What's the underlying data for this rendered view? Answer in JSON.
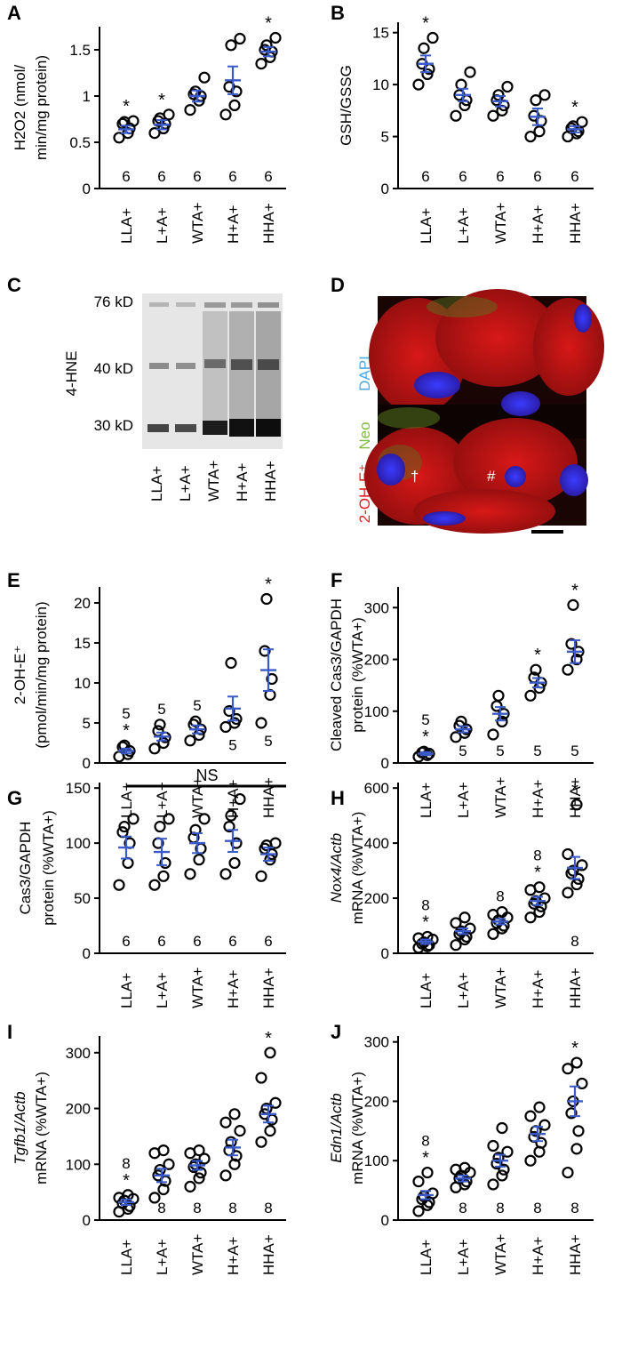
{
  "categories": [
    "LLA+",
    "L+A+",
    "WTA+",
    "H+A+",
    "HHA+"
  ],
  "colors": {
    "points": "#000000",
    "mean_sem": "#3a5bc7",
    "axis": "#000000",
    "dapi": "#4aa8e8",
    "neo": "#7db83a",
    "oh": "#e02020"
  },
  "chart_data": [
    {
      "id": "A",
      "type": "scatter",
      "ylabel": [
        "H2O2 (nmol/",
        "min/mg protein)"
      ],
      "ylim": [
        0,
        1.75
      ],
      "yticks": [
        0,
        0.5,
        1,
        1.5
      ],
      "ytick_labels": [
        "0",
        "0.5",
        "1",
        "1.5"
      ],
      "points": [
        [
          0.55,
          0.6,
          0.65,
          0.7,
          0.72,
          0.73
        ],
        [
          0.6,
          0.65,
          0.7,
          0.73,
          0.76,
          0.8
        ],
        [
          0.85,
          0.95,
          1.0,
          1.02,
          1.05,
          1.2
        ],
        [
          0.8,
          0.9,
          1.05,
          1.1,
          1.55,
          1.62
        ],
        [
          1.35,
          1.42,
          1.48,
          1.5,
          1.55,
          1.63
        ]
      ],
      "mean": [
        0.64,
        0.69,
        1.0,
        1.17,
        1.48
      ],
      "sem": [
        0.04,
        0.05,
        0.06,
        0.15,
        0.05
      ],
      "n": [
        "6",
        "6",
        "6",
        "6",
        "6"
      ],
      "n_pos": "bottom",
      "stars": [
        true,
        true,
        false,
        false,
        true
      ]
    },
    {
      "id": "B",
      "type": "scatter",
      "ylabel": [
        "GSH/GSSG"
      ],
      "ylim": [
        0,
        16
      ],
      "yticks": [
        0,
        5,
        10,
        15
      ],
      "ytick_labels": [
        "0",
        "5",
        "10",
        "15"
      ],
      "points": [
        [
          10.0,
          11.0,
          11.5,
          12.0,
          13.5,
          14.5
        ],
        [
          7.0,
          8.0,
          8.5,
          9.0,
          10.0,
          11.2
        ],
        [
          7.0,
          7.5,
          8.0,
          8.5,
          9.0,
          9.8
        ],
        [
          5.0,
          5.5,
          6.5,
          7.0,
          8.5,
          9.0
        ],
        [
          5.0,
          5.3,
          5.5,
          5.8,
          6.0,
          6.4
        ]
      ],
      "mean": [
        12.0,
        9.0,
        8.4,
        6.9,
        5.7
      ],
      "sem": [
        0.8,
        0.6,
        0.5,
        0.8,
        0.3
      ],
      "n": [
        "6",
        "6",
        "6",
        "6",
        "6"
      ],
      "n_pos": "bottom",
      "stars": [
        true,
        false,
        false,
        false,
        true
      ]
    },
    {
      "id": "E",
      "type": "scatter",
      "ylabel": [
        "2-OH-E⁺",
        "(pmol/min/mg protein)"
      ],
      "ylim": [
        0,
        22
      ],
      "yticks": [
        0,
        5,
        10,
        15,
        20
      ],
      "ytick_labels": [
        "0",
        "5",
        "10",
        "15",
        "20"
      ],
      "points": [
        [
          0.8,
          1.1,
          1.5,
          2.0,
          2.2
        ],
        [
          1.8,
          2.5,
          3.2,
          4.0,
          4.8
        ],
        [
          2.8,
          3.5,
          4.2,
          4.8,
          5.2
        ],
        [
          4.5,
          5.0,
          5.5,
          6.5,
          12.5
        ],
        [
          5.0,
          8.5,
          10.5,
          14.0,
          20.5
        ]
      ],
      "mean": [
        1.5,
        3.3,
        4.2,
        6.8,
        11.6
      ],
      "sem": [
        0.3,
        0.5,
        0.5,
        1.5,
        2.6
      ],
      "n": [
        "5",
        "5",
        "5",
        "5",
        "5"
      ],
      "n_pos": [
        "above",
        "above",
        "above",
        "below",
        "below"
      ],
      "stars": [
        true,
        false,
        false,
        false,
        true
      ]
    },
    {
      "id": "F",
      "type": "scatter",
      "ylabel": [
        "Cleaved Cas3/GAPDH",
        "protein    (%WTA+)"
      ],
      "ylim": [
        0,
        340
      ],
      "yticks": [
        0,
        100,
        200,
        300
      ],
      "ytick_labels": [
        "0",
        "100",
        "200",
        "300"
      ],
      "points": [
        [
          12,
          15,
          18,
          20,
          22
        ],
        [
          50,
          58,
          65,
          72,
          80
        ],
        [
          55,
          80,
          95,
          110,
          130
        ],
        [
          130,
          145,
          155,
          165,
          180
        ],
        [
          180,
          200,
          215,
          230,
          305
        ]
      ],
      "mean": [
        18,
        65,
        95,
        155,
        215
      ],
      "sem": [
        3,
        6,
        13,
        9,
        22
      ],
      "n": [
        "5",
        "5",
        "5",
        "5",
        "5"
      ],
      "n_pos": [
        "above",
        "bottom",
        "bottom",
        "bottom",
        "bottom"
      ],
      "stars": [
        true,
        false,
        false,
        true,
        true
      ]
    },
    {
      "id": "G",
      "type": "scatter",
      "ylabel": [
        "Cas3/GAPDH",
        "protein    (%WTA+)"
      ],
      "ylim": [
        0,
        155
      ],
      "yticks": [
        0,
        50,
        100,
        150
      ],
      "ytick_labels": [
        "0",
        "50",
        "100",
        "150"
      ],
      "points": [
        [
          62,
          82,
          100,
          110,
          115,
          122
        ],
        [
          62,
          70,
          82,
          100,
          115,
          122
        ],
        [
          72,
          85,
          95,
          105,
          112,
          122
        ],
        [
          72,
          82,
          100,
          115,
          125,
          140
        ],
        [
          70,
          85,
          90,
          95,
          98,
          100
        ]
      ],
      "mean": [
        96,
        92,
        100,
        102,
        90
      ],
      "sem": [
        10,
        12,
        9,
        10,
        6
      ],
      "n": [
        "6",
        "6",
        "6",
        "6",
        "6"
      ],
      "n_pos": "bottom",
      "stars": [
        false,
        false,
        false,
        false,
        false
      ],
      "ns_label": "NS"
    },
    {
      "id": "H",
      "type": "scatter",
      "ylabel": [
        "Nox4/Actb",
        "mRNA (%WTA+)"
      ],
      "ylabel_italic": [
        true,
        false
      ],
      "ylim": [
        0,
        620
      ],
      "yticks": [
        0,
        200,
        400,
        600
      ],
      "ytick_labels": [
        "0",
        "200",
        "400",
        "600"
      ],
      "points": [
        [
          20,
          25,
          30,
          35,
          40,
          50,
          55,
          60
        ],
        [
          30,
          50,
          60,
          70,
          80,
          90,
          110,
          130
        ],
        [
          70,
          90,
          100,
          110,
          120,
          130,
          140,
          150
        ],
        [
          130,
          150,
          170,
          180,
          190,
          200,
          230,
          240
        ],
        [
          220,
          250,
          270,
          290,
          300,
          320,
          360,
          540
        ]
      ],
      "mean": [
        42,
        80,
        115,
        190,
        310
      ],
      "sem": [
        8,
        10,
        10,
        15,
        40
      ],
      "n": [
        "8",
        "",
        "8",
        "8",
        "8"
      ],
      "n_pos": [
        "above",
        "above",
        "above",
        "above",
        "bottom"
      ],
      "stars": [
        true,
        false,
        false,
        true,
        true
      ]
    },
    {
      "id": "I",
      "type": "scatter",
      "ylabel": [
        "Tgfb1/Actb",
        "mRNA (%WTA+)"
      ],
      "ylabel_italic": [
        true,
        false
      ],
      "ylim": [
        0,
        330
      ],
      "yticks": [
        0,
        100,
        200,
        300
      ],
      "ytick_labels": [
        "0",
        "100",
        "200",
        "300"
      ],
      "points": [
        [
          15,
          20,
          25,
          30,
          35,
          38,
          40,
          45
        ],
        [
          40,
          55,
          70,
          80,
          90,
          100,
          120,
          125
        ],
        [
          60,
          75,
          85,
          95,
          100,
          110,
          120,
          125
        ],
        [
          80,
          100,
          115,
          125,
          140,
          160,
          175,
          190
        ],
        [
          140,
          160,
          180,
          190,
          200,
          210,
          255,
          300
        ]
      ],
      "mean": [
        32,
        80,
        98,
        130,
        190
      ],
      "sem": [
        5,
        12,
        8,
        14,
        15
      ],
      "n": [
        "8",
        "8",
        "8",
        "8",
        "8"
      ],
      "n_pos": [
        "above",
        "bottom",
        "bottom",
        "bottom",
        "bottom"
      ],
      "stars": [
        true,
        false,
        false,
        false,
        true
      ]
    },
    {
      "id": "J",
      "type": "scatter",
      "ylabel": [
        "Edn1/Actb",
        "mRNA (%WTA+)"
      ],
      "ylabel_italic": [
        true,
        false
      ],
      "ylim": [
        0,
        310
      ],
      "yticks": [
        0,
        100,
        200,
        300
      ],
      "ytick_labels": [
        "0",
        "100",
        "200",
        "300"
      ],
      "points": [
        [
          15,
          25,
          30,
          35,
          40,
          45,
          65,
          80
        ],
        [
          55,
          60,
          65,
          70,
          75,
          80,
          85,
          88
        ],
        [
          60,
          75,
          85,
          95,
          105,
          115,
          125,
          155
        ],
        [
          100,
          115,
          130,
          140,
          150,
          160,
          175,
          190
        ],
        [
          80,
          120,
          150,
          180,
          200,
          230,
          255,
          265
        ]
      ],
      "mean": [
        42,
        70,
        100,
        145,
        200
      ],
      "sem": [
        7,
        5,
        10,
        12,
        25
      ],
      "n": [
        "8",
        "8",
        "8",
        "8",
        "8"
      ],
      "n_pos": [
        "above",
        "bottom",
        "bottom",
        "bottom",
        "bottom"
      ],
      "stars": [
        true,
        false,
        false,
        false,
        true
      ]
    }
  ],
  "panel_labels": {
    "A": "A",
    "B": "B",
    "C": "C",
    "D": "D",
    "E": "E",
    "F": "F",
    "G": "G",
    "H": "H",
    "I": "I",
    "J": "J"
  },
  "blot": {
    "title": "4-HNE",
    "markers": [
      "76 kD",
      "40 kD",
      "30 kD"
    ],
    "lanes": [
      "LLA+",
      "L+A+",
      "WTA+",
      "H+A+",
      "HHA+"
    ]
  },
  "micro": {
    "labels": [
      "DAPI",
      "Neo",
      "2-OH-E⁺"
    ],
    "marks": [
      "†",
      "#"
    ]
  }
}
